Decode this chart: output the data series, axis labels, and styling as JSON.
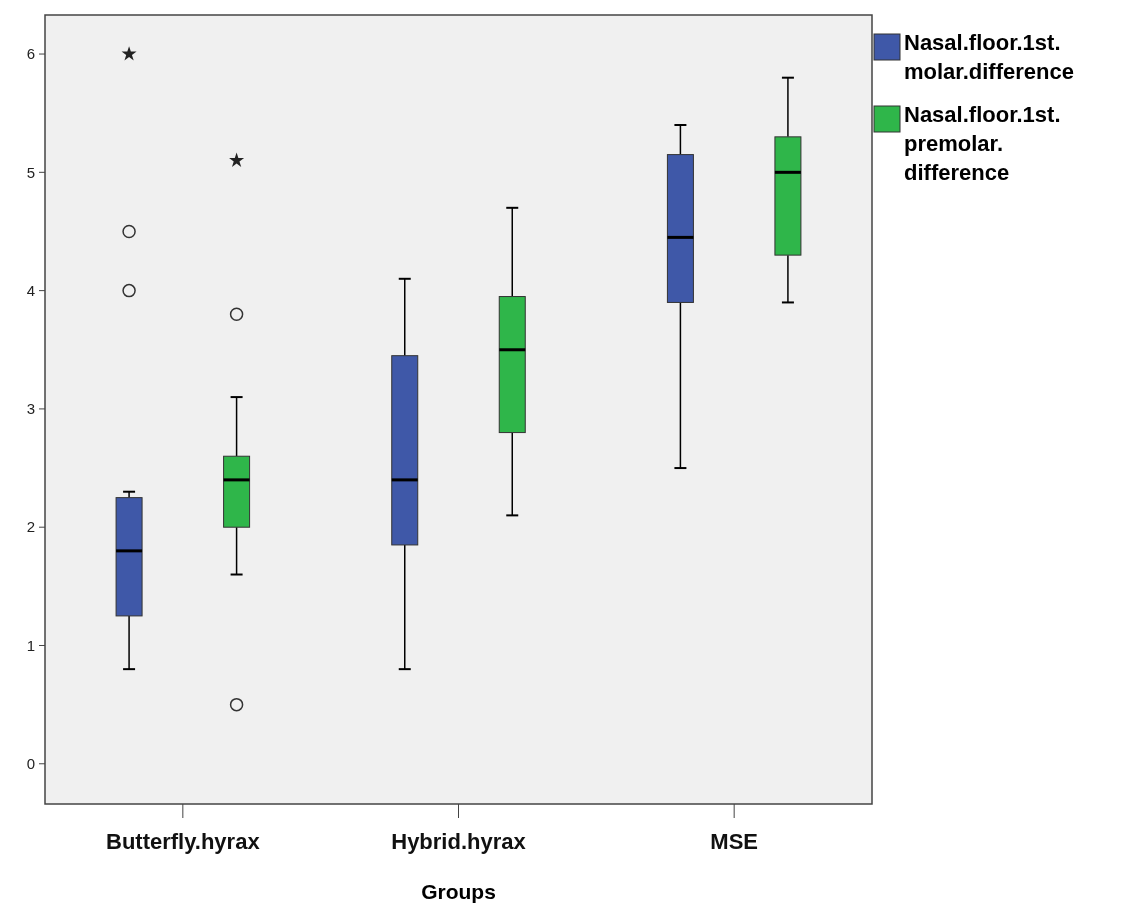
{
  "chart_data": {
    "type": "box",
    "xlabel": "Groups",
    "categories": [
      "Butterfly.hyrax",
      "Hybrid.hyrax",
      "MSE"
    ],
    "ylim": [
      -0.34,
      6.33
    ],
    "yticks": [
      0,
      1,
      2,
      3,
      4,
      5,
      6
    ],
    "legend": "top right",
    "grid": false,
    "series": [
      {
        "name": "Nasal.floor.1st.\nmolar.difference",
        "color": "#3f58a8",
        "boxes": [
          {
            "low": 0.8,
            "q1": 1.25,
            "median": 1.8,
            "q3": 2.25,
            "high": 2.3,
            "outliers": [
              4.0,
              4.5,
              6.0
            ]
          },
          {
            "low": 0.8,
            "q1": 1.85,
            "median": 2.4,
            "q3": 3.45,
            "high": 4.1
          },
          {
            "low": 2.5,
            "q1": 3.9,
            "median": 4.45,
            "q3": 5.15,
            "high": 5.4
          }
        ]
      },
      {
        "name": "Nasal.floor.1st.\npremolar.\ndifference",
        "color": "#2fb64a",
        "boxes": [
          {
            "low": 1.6,
            "q1": 2.0,
            "median": 2.4,
            "q3": 2.6,
            "high": 3.1,
            "outliers": [
              0.5,
              3.8,
              5.1
            ]
          },
          {
            "low": 2.1,
            "q1": 2.8,
            "median": 3.5,
            "q3": 3.95,
            "high": 4.7
          },
          {
            "low": 3.9,
            "q1": 4.3,
            "median": 5.0,
            "q3": 5.3,
            "high": 5.8
          }
        ]
      }
    ]
  }
}
